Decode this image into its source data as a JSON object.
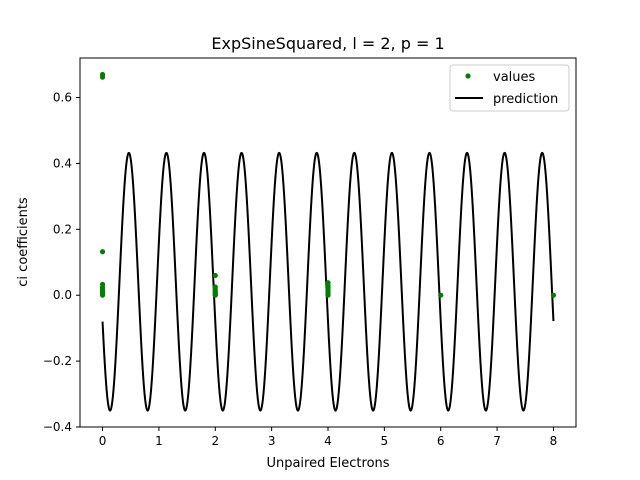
{
  "chart_data": {
    "type": "scatter",
    "title": "ExpSineSquared, l = 2, p = 1",
    "xlabel": "Unpaired Electrons",
    "ylabel": "ci coefficients",
    "xlim": [
      -0.4,
      8.4
    ],
    "ylim": [
      -0.4,
      0.72
    ],
    "xticks": [
      0,
      1,
      2,
      3,
      4,
      5,
      6,
      7,
      8
    ],
    "yticks": [
      -0.4,
      -0.2,
      0.0,
      0.2,
      0.4,
      0.6
    ],
    "xtick_labels": [
      "0",
      "1",
      "2",
      "3",
      "4",
      "5",
      "6",
      "7",
      "8"
    ],
    "ytick_labels": [
      "−0.4",
      "−0.2",
      "0.0",
      "0.2",
      "0.4",
      "0.6"
    ],
    "grid": false,
    "legend_position": "top-right",
    "series": [
      {
        "name": "values",
        "kind": "scatter",
        "color": "#008000",
        "points": [
          [
            0,
            0.67
          ],
          [
            0,
            0.662
          ],
          [
            0,
            0.132
          ],
          [
            0,
            0.033
          ],
          [
            0,
            0.024
          ],
          [
            0,
            0.017
          ],
          [
            0,
            0.012
          ],
          [
            0,
            0.008
          ],
          [
            0,
            0.005
          ],
          [
            0,
            0.002
          ],
          [
            0,
            0.0
          ],
          [
            2,
            0.06
          ],
          [
            2,
            0.025
          ],
          [
            2,
            0.018
          ],
          [
            2,
            0.012
          ],
          [
            2,
            0.008
          ],
          [
            2,
            0.004
          ],
          [
            2,
            0.001
          ],
          [
            2,
            0.0
          ],
          [
            4,
            0.038
          ],
          [
            4,
            0.03
          ],
          [
            4,
            0.024
          ],
          [
            4,
            0.018
          ],
          [
            4,
            0.012
          ],
          [
            4,
            0.007
          ],
          [
            4,
            0.003
          ],
          [
            4,
            0.0
          ],
          [
            6,
            0.0
          ],
          [
            8,
            0.0
          ]
        ]
      },
      {
        "name": "prediction",
        "kind": "line",
        "color": "#000000",
        "x_range": [
          0,
          8
        ],
        "period": 0.6667,
        "phase": 0.1333,
        "min": -0.35,
        "max": 0.432
      }
    ]
  }
}
